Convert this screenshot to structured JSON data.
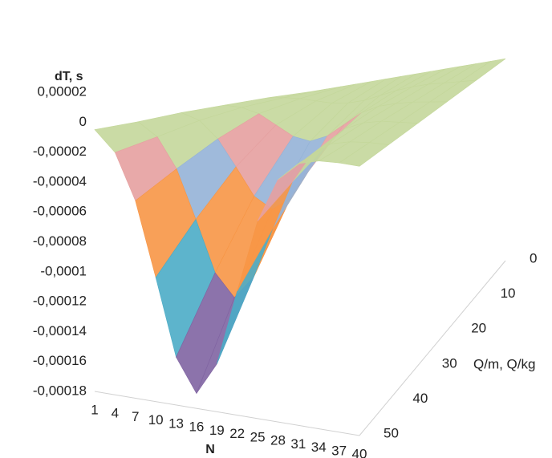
{
  "chart_data": {
    "type": "surface",
    "z_title": "dT, s",
    "x_title": "N",
    "depth_title": "Q/m, Q/kg",
    "categories": [
      1,
      4,
      7,
      10,
      13,
      16,
      19,
      22,
      25,
      28,
      31,
      34,
      37,
      40
    ],
    "depth_categories": [
      0,
      10,
      20,
      30,
      40,
      50
    ],
    "series": [
      {
        "values": [
          0,
          0,
          0,
          0,
          0,
          0,
          0,
          0,
          0,
          0,
          0,
          0,
          0,
          0
        ]
      },
      {
        "values": [
          0,
          -1e-06,
          -3e-06,
          -6e-06,
          -9e-06,
          -1e-05,
          -9e-06,
          -6e-06,
          -3e-06,
          -1e-06,
          0,
          0,
          0,
          0
        ]
      },
      {
        "values": [
          -1e-06,
          -3e-06,
          -8e-06,
          -1.7e-05,
          -2.6e-05,
          -3e-05,
          -2.6e-05,
          -1.7e-05,
          -8e-06,
          -3e-06,
          -1e-06,
          0,
          0,
          0
        ]
      },
      {
        "values": [
          -2e-06,
          -7e-06,
          -2e-05,
          -4e-05,
          -6.1e-05,
          -7e-05,
          -6.1e-05,
          -4e-05,
          -2e-05,
          -7e-06,
          -2e-06,
          0,
          0,
          0
        ]
      },
      {
        "values": [
          -4e-06,
          -1.3e-05,
          -3.4e-05,
          -6.8e-05,
          -0.000104,
          -0.00012,
          -0.000104,
          -6.8e-05,
          -3.4e-05,
          -1.3e-05,
          -4e-06,
          -1e-06,
          0,
          0
        ]
      },
      {
        "values": [
          -5e-06,
          -1.8e-05,
          -4.8e-05,
          -9.7e-05,
          -0.000148,
          -0.00017,
          -0.000148,
          -9.7e-05,
          -4.8e-05,
          -1.8e-05,
          -5e-06,
          -1e-06,
          0,
          0
        ]
      }
    ],
    "ylim": [
      -0.00018,
      2e-05
    ],
    "yticks": [
      {
        "value": -0.00018,
        "label": "-0,00018"
      },
      {
        "value": -0.00016,
        "label": "-0,00016"
      },
      {
        "value": -0.00014,
        "label": "-0,00014"
      },
      {
        "value": -0.00012,
        "label": "-0,00012"
      },
      {
        "value": -0.0001,
        "label": "-0,0001"
      },
      {
        "value": -8e-05,
        "label": "-0,00008"
      },
      {
        "value": -6e-05,
        "label": "-0,00006"
      },
      {
        "value": -4e-05,
        "label": "-0,00004"
      },
      {
        "value": -2e-05,
        "label": "-0,00002"
      },
      0,
      {
        "value": 2e-05,
        "label": "0,00002"
      }
    ],
    "band_colors": [
      "#c0504d",
      "#9bbb59",
      "#8064a2",
      "#4bacc6",
      "#f79646",
      "#f79646",
      "#95b3d7",
      "#e6a0a0",
      "#c4d79b",
      "#c4d79b"
    ],
    "grid": true
  }
}
